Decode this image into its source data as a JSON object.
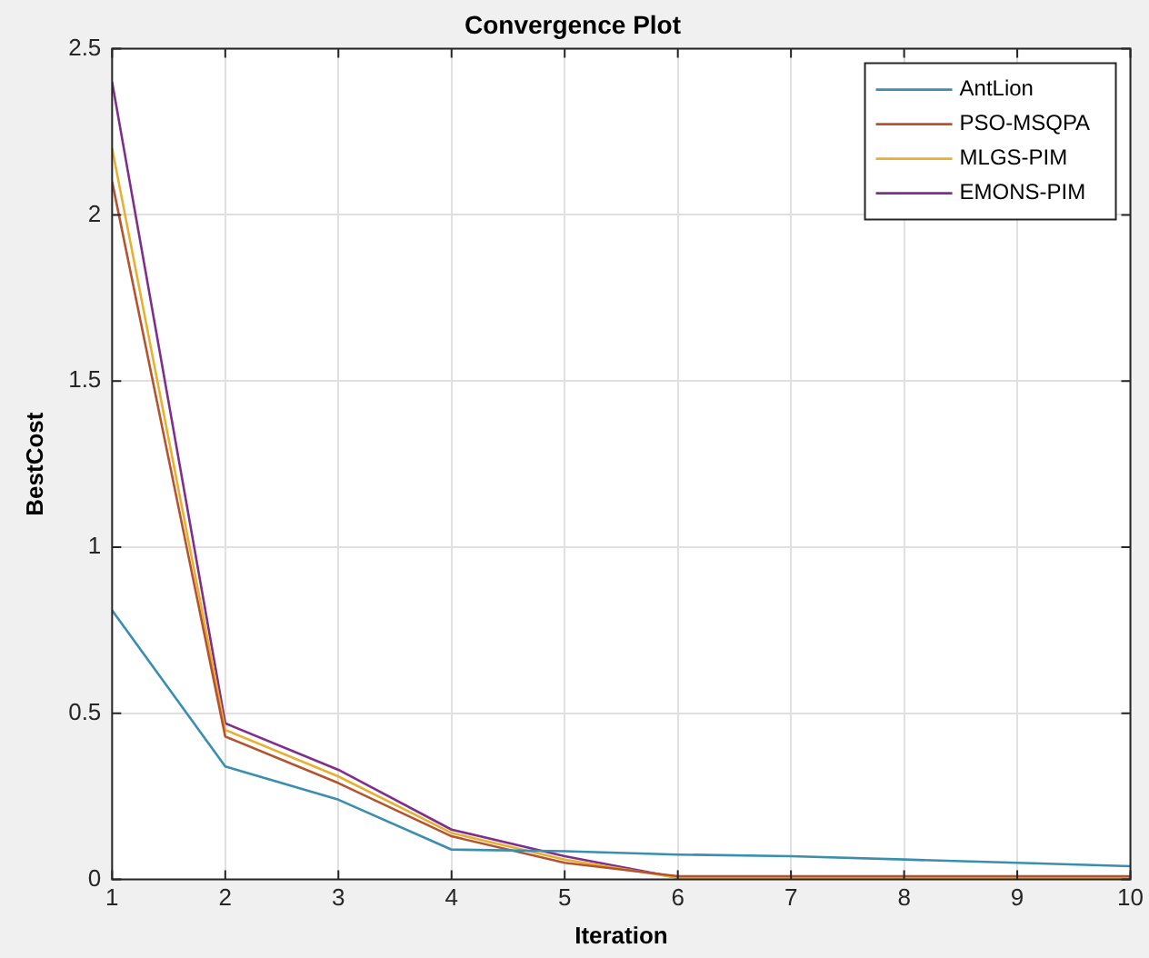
{
  "chart_data": {
    "type": "line",
    "title": "Convergence Plot",
    "xlabel": "Iteration",
    "ylabel": "BestCost",
    "x": [
      1,
      2,
      3,
      4,
      5,
      6,
      7,
      8,
      9,
      10
    ],
    "series": [
      {
        "name": "AntLion",
        "color": "#3a8fb0",
        "values": [
          0.81,
          0.34,
          0.24,
          0.09,
          0.085,
          0.075,
          0.07,
          0.06,
          0.05,
          0.04
        ]
      },
      {
        "name": "PSO-MSQPA",
        "color": "#b5532e",
        "values": [
          2.1,
          0.43,
          0.29,
          0.13,
          0.05,
          0.01,
          0.01,
          0.01,
          0.01,
          0.01
        ]
      },
      {
        "name": "MLGS-PIM",
        "color": "#e8b030",
        "values": [
          2.2,
          0.45,
          0.31,
          0.14,
          0.06,
          0.005,
          0.005,
          0.005,
          0.005,
          0.005
        ]
      },
      {
        "name": "EMONS-PIM",
        "color": "#7e2f8e",
        "values": [
          2.4,
          0.47,
          0.33,
          0.15,
          0.07,
          0.005,
          0.005,
          0.005,
          0.005,
          0.005
        ]
      }
    ],
    "xlim": [
      1,
      10
    ],
    "xticks": [
      1,
      2,
      3,
      4,
      5,
      6,
      7,
      8,
      9,
      10
    ],
    "ylim": [
      0,
      2.5
    ],
    "yticks": [
      0,
      0.5,
      1,
      1.5,
      2,
      2.5
    ],
    "grid": true,
    "legend": "top right",
    "marker": "none",
    "line_style": "solid"
  }
}
